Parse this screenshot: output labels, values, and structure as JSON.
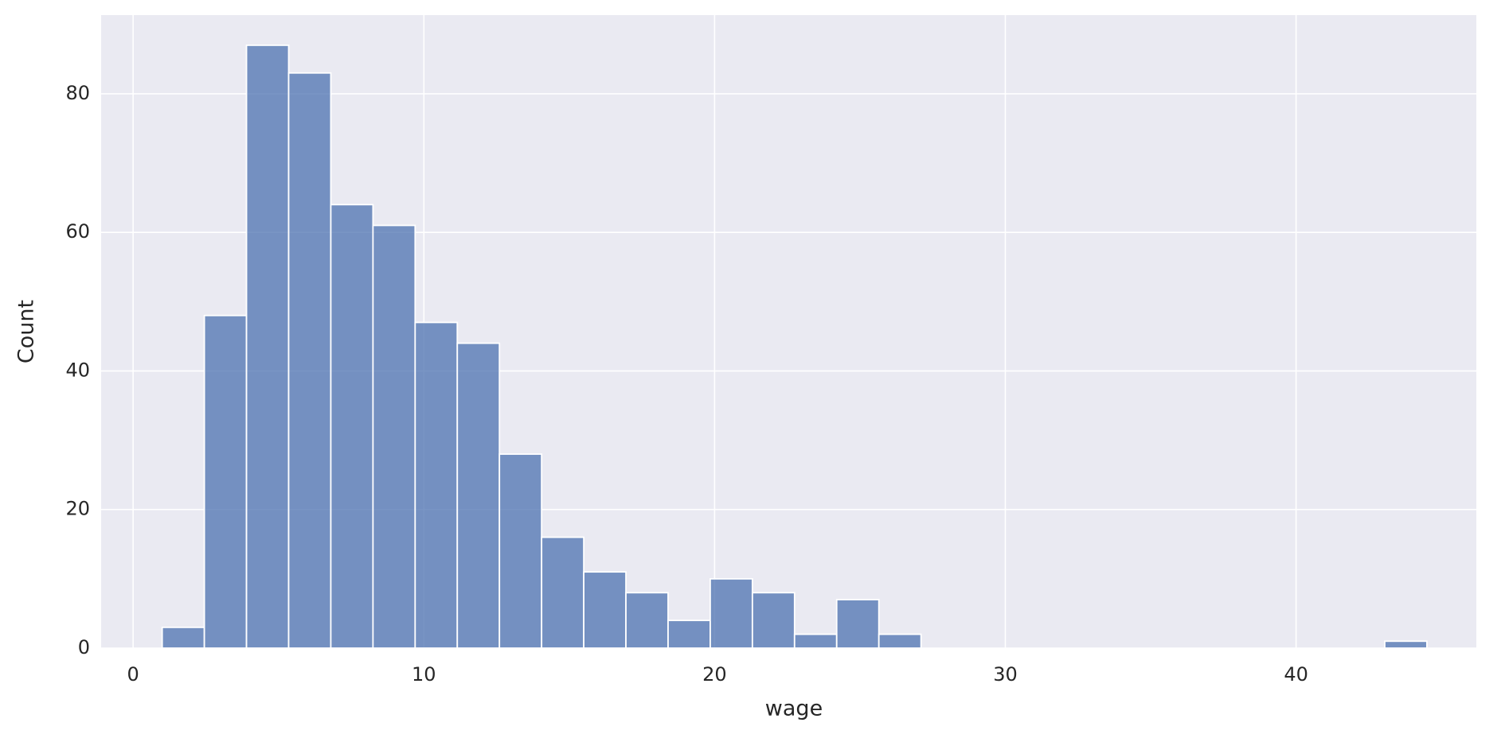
{
  "chart_data": {
    "type": "histogram",
    "xlabel": "wage",
    "ylabel": "Count",
    "bins": [
      1,
      2.45,
      3.9,
      5.35,
      6.8,
      8.25,
      9.7,
      11.15,
      12.6,
      14.05,
      15.5,
      16.95,
      18.4,
      19.85,
      21.3,
      22.75,
      24.2,
      25.65,
      27.1,
      28.55,
      30,
      31.45,
      32.9,
      34.35,
      35.8,
      37.25,
      38.7,
      40.15,
      41.6,
      43.05,
      44.5
    ],
    "values": [
      3,
      48,
      87,
      83,
      64,
      61,
      47,
      44,
      28,
      16,
      11,
      8,
      4,
      10,
      8,
      2,
      7,
      2,
      0,
      0,
      0,
      0,
      0,
      0,
      0,
      0,
      0,
      0,
      0,
      1
    ],
    "color": "#4c72b0",
    "xlim": [
      -1.1,
      46.2
    ],
    "xticks": [
      0,
      10,
      20,
      30,
      40
    ],
    "ylim": [
      0,
      91.35
    ],
    "yticks": [
      0,
      20,
      40,
      60,
      80
    ],
    "grid": true
  }
}
